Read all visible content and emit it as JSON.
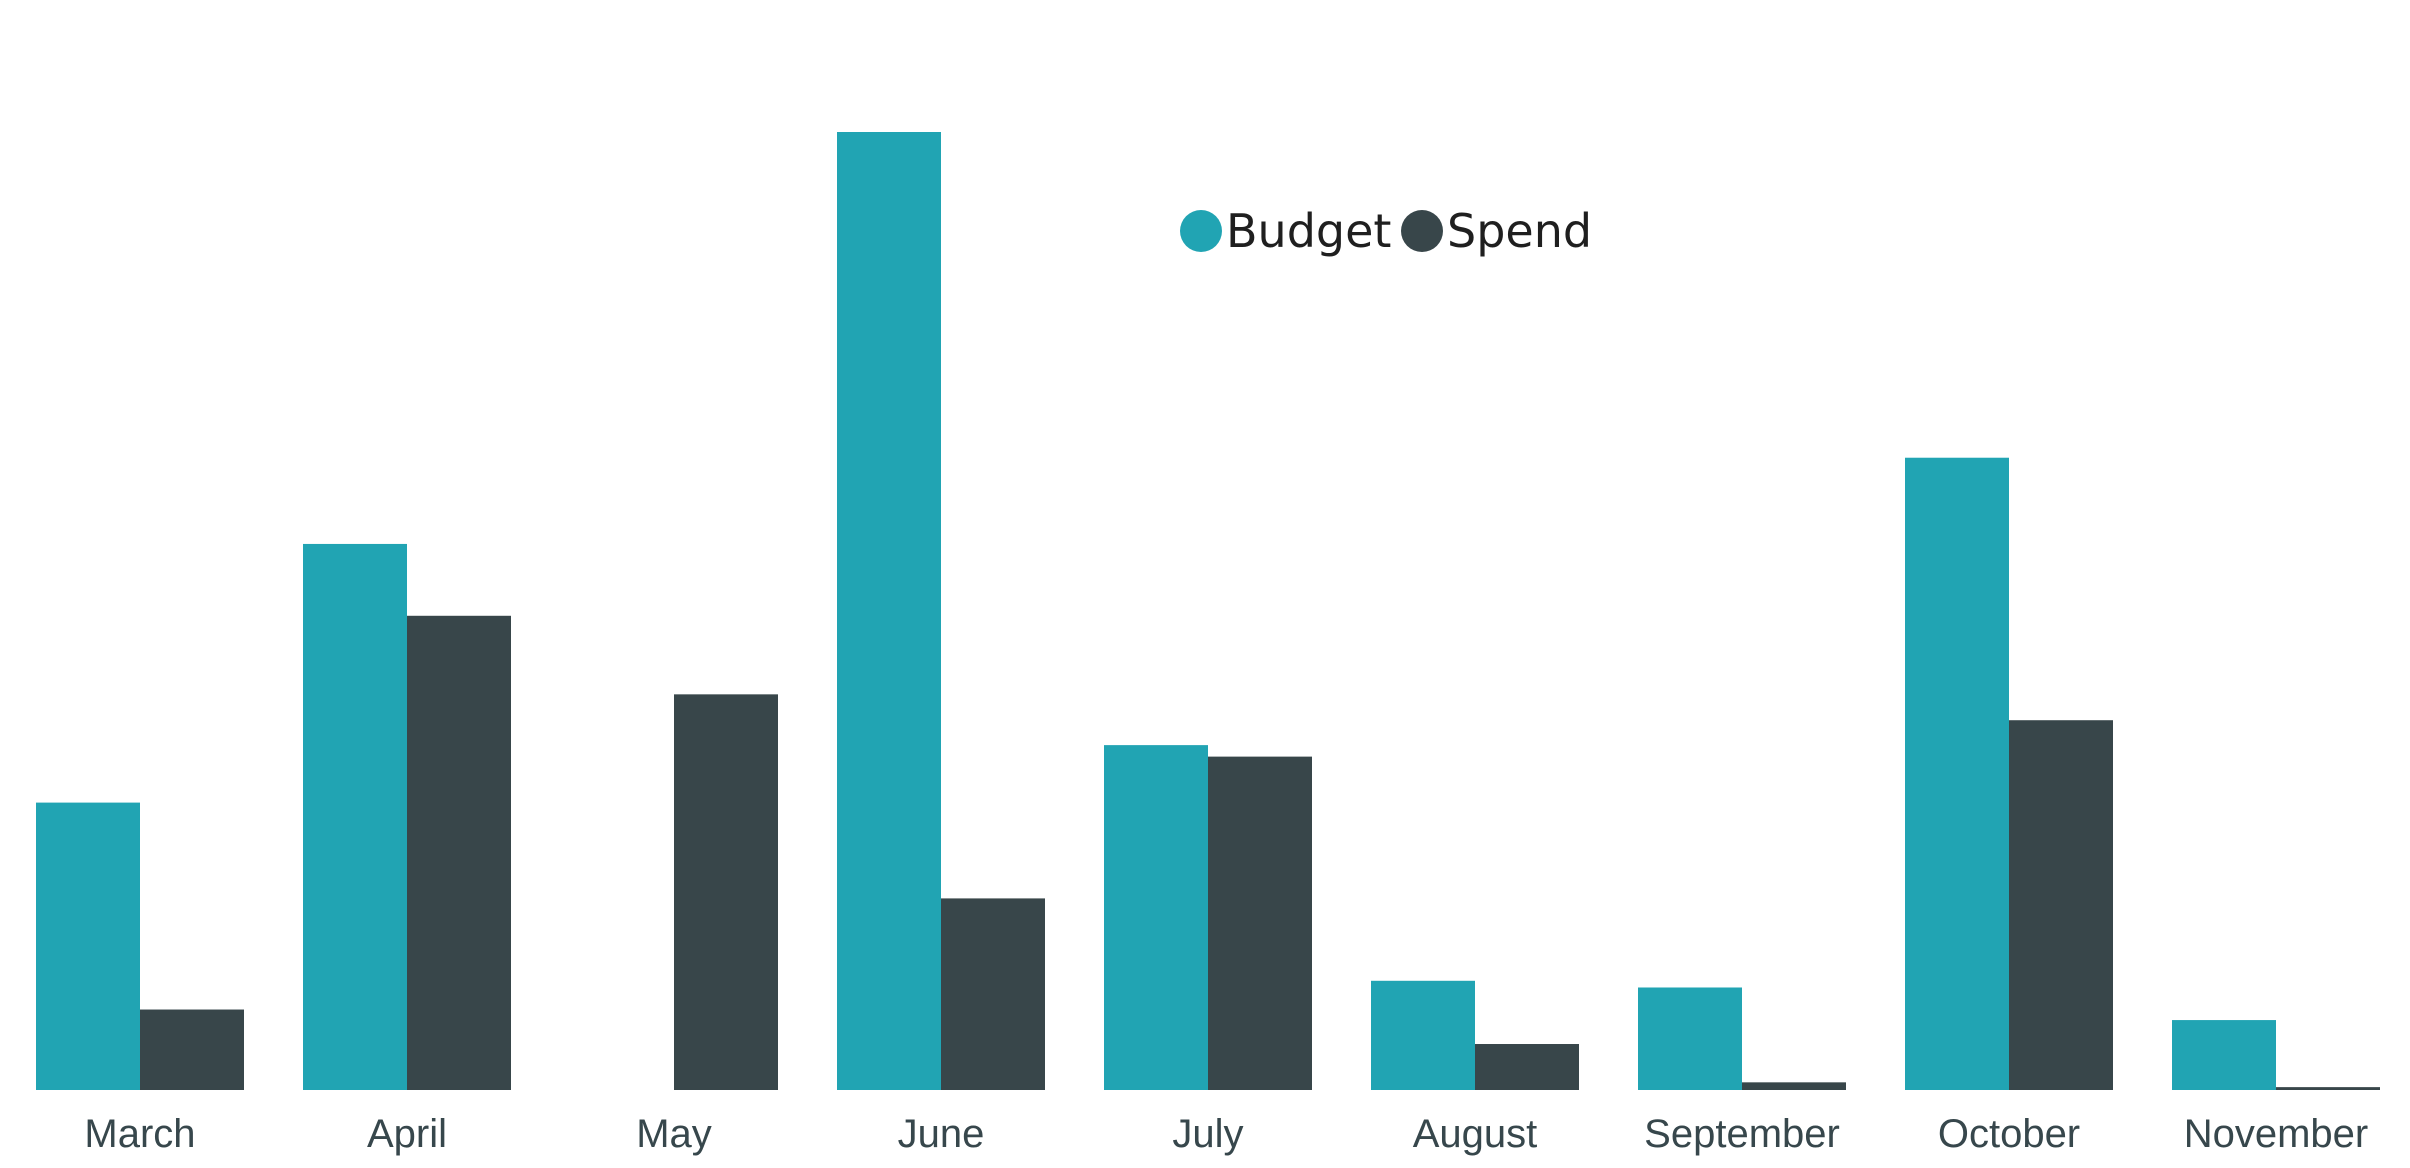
{
  "chart_data": {
    "type": "bar",
    "title": "",
    "xlabel": "",
    "ylabel": "",
    "ylim": [
      0,
      100
    ],
    "grid": false,
    "legend_position": "top-center",
    "categories": [
      "March",
      "April",
      "May",
      "June",
      "July",
      "August",
      "September",
      "October",
      "November"
    ],
    "series": [
      {
        "name": "Budget",
        "color": "#21a4b3",
        "values": [
          30.0,
          57.0,
          0,
          100.0,
          36.0,
          11.4,
          10.7,
          66.0,
          7.3
        ]
      },
      {
        "name": "Spend",
        "color": "#38464a",
        "values": [
          8.4,
          49.5,
          41.3,
          20.0,
          34.8,
          4.8,
          0.8,
          38.6,
          0.3
        ]
      }
    ]
  }
}
